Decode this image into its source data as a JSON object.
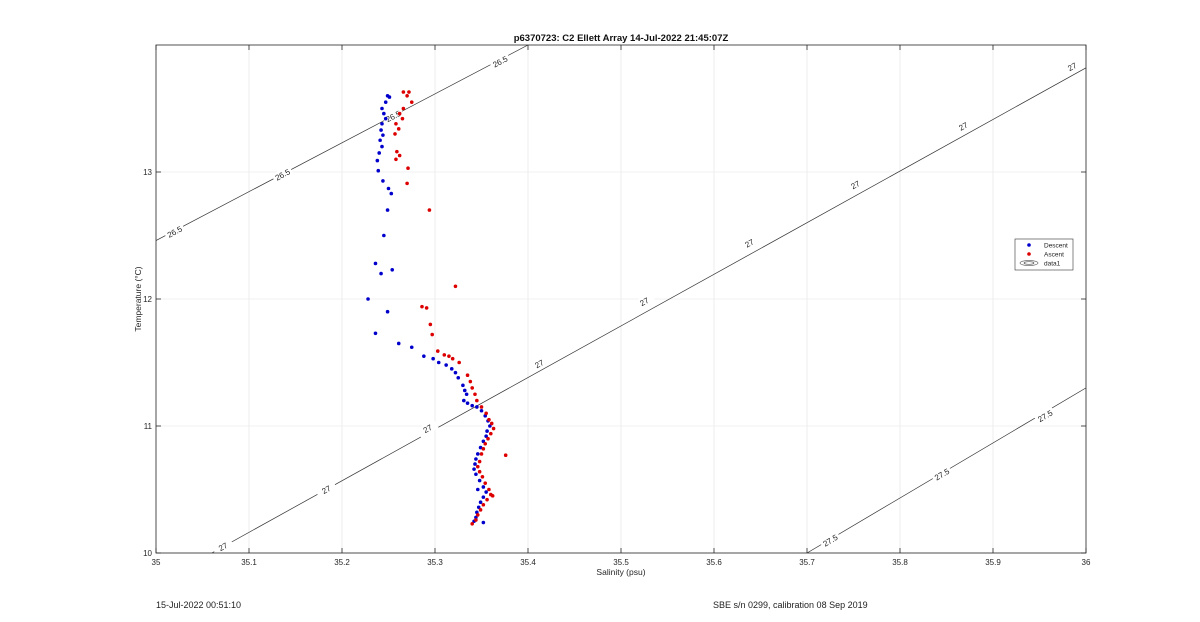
{
  "chart_data": {
    "type": "scatter",
    "title": "p6370723: C2 Ellett Array 14-Jul-2022 21:45:07Z",
    "xlabel": "Salinity (psu)",
    "ylabel": "Temperature (°C)",
    "xlim": [
      35,
      36
    ],
    "ylim": [
      10,
      14.0
    ],
    "xticks": [
      35,
      35.1,
      35.2,
      35.3,
      35.4,
      35.5,
      35.6,
      35.7,
      35.8,
      35.9,
      36
    ],
    "xtick_labels": [
      "35",
      "35.1",
      "35.2",
      "35.3",
      "35.4",
      "35.5",
      "35.6",
      "35.7",
      "35.8",
      "35.9",
      "36"
    ],
    "yticks": [
      10,
      11,
      12,
      13
    ],
    "ytick_labels": [
      "10",
      "11",
      "12",
      "13"
    ],
    "grid": true,
    "legend_position": "right",
    "legend": [
      {
        "label": "Descent",
        "color": "#0000cc",
        "marker": "dot"
      },
      {
        "label": "Ascent",
        "color": "#dd0000",
        "marker": "dot"
      },
      {
        "label": "data1",
        "color": "#555555",
        "marker": "contour"
      }
    ],
    "series": [
      {
        "name": "Descent",
        "color": "#0000cc",
        "points": [
          [
            35.249,
            13.6
          ],
          [
            35.251,
            13.59
          ],
          [
            35.247,
            13.55
          ],
          [
            35.243,
            13.5
          ],
          [
            35.245,
            13.46
          ],
          [
            35.247,
            13.42
          ],
          [
            35.243,
            13.38
          ],
          [
            35.242,
            13.33
          ],
          [
            35.244,
            13.29
          ],
          [
            35.241,
            13.25
          ],
          [
            35.243,
            13.2
          ],
          [
            35.24,
            13.15
          ],
          [
            35.238,
            13.09
          ],
          [
            35.239,
            13.01
          ],
          [
            35.244,
            12.93
          ],
          [
            35.25,
            12.87
          ],
          [
            35.253,
            12.83
          ],
          [
            35.249,
            12.7
          ],
          [
            35.245,
            12.5
          ],
          [
            35.236,
            12.28
          ],
          [
            35.242,
            12.2
          ],
          [
            35.254,
            12.23
          ],
          [
            35.228,
            12.0
          ],
          [
            35.249,
            11.9
          ],
          [
            35.236,
            11.73
          ],
          [
            35.261,
            11.65
          ],
          [
            35.275,
            11.62
          ],
          [
            35.288,
            11.55
          ],
          [
            35.298,
            11.53
          ],
          [
            35.304,
            11.5
          ],
          [
            35.312,
            11.48
          ],
          [
            35.318,
            11.45
          ],
          [
            35.322,
            11.42
          ],
          [
            35.325,
            11.38
          ],
          [
            35.33,
            11.32
          ],
          [
            35.332,
            11.28
          ],
          [
            35.334,
            11.25
          ],
          [
            35.331,
            11.2
          ],
          [
            35.335,
            11.18
          ],
          [
            35.34,
            11.16
          ],
          [
            35.345,
            11.15
          ],
          [
            35.35,
            11.12
          ],
          [
            35.354,
            11.08
          ],
          [
            35.357,
            11.04
          ],
          [
            35.359,
            11.0
          ],
          [
            35.356,
            10.96
          ],
          [
            35.355,
            10.92
          ],
          [
            35.352,
            10.88
          ],
          [
            35.349,
            10.83
          ],
          [
            35.346,
            10.78
          ],
          [
            35.344,
            10.74
          ],
          [
            35.343,
            10.7
          ],
          [
            35.342,
            10.66
          ],
          [
            35.344,
            10.62
          ],
          [
            35.348,
            10.57
          ],
          [
            35.352,
            10.52
          ],
          [
            35.355,
            10.48
          ],
          [
            35.352,
            10.44
          ],
          [
            35.349,
            10.4
          ],
          [
            35.347,
            10.36
          ],
          [
            35.345,
            10.32
          ],
          [
            35.344,
            10.28
          ],
          [
            35.342,
            10.25
          ],
          [
            35.352,
            10.24
          ],
          [
            35.346,
            10.5
          ]
        ]
      },
      {
        "name": "Ascent",
        "color": "#dd0000",
        "points": [
          [
            35.266,
            13.63
          ],
          [
            35.272,
            13.63
          ],
          [
            35.27,
            13.6
          ],
          [
            35.275,
            13.55
          ],
          [
            35.266,
            13.5
          ],
          [
            35.262,
            13.46
          ],
          [
            35.265,
            13.42
          ],
          [
            35.258,
            13.38
          ],
          [
            35.261,
            13.34
          ],
          [
            35.257,
            13.3
          ],
          [
            35.259,
            13.16
          ],
          [
            35.262,
            13.13
          ],
          [
            35.258,
            13.1
          ],
          [
            35.271,
            13.03
          ],
          [
            35.27,
            12.91
          ],
          [
            35.294,
            12.7
          ],
          [
            35.322,
            12.1
          ],
          [
            35.286,
            11.94
          ],
          [
            35.291,
            11.93
          ],
          [
            35.295,
            11.8
          ],
          [
            35.297,
            11.72
          ],
          [
            35.303,
            11.59
          ],
          [
            35.31,
            11.56
          ],
          [
            35.315,
            11.55
          ],
          [
            35.319,
            11.53
          ],
          [
            35.326,
            11.5
          ],
          [
            35.335,
            11.4
          ],
          [
            35.338,
            11.35
          ],
          [
            35.34,
            11.3
          ],
          [
            35.343,
            11.25
          ],
          [
            35.345,
            11.2
          ],
          [
            35.35,
            11.15
          ],
          [
            35.355,
            11.1
          ],
          [
            35.358,
            11.05
          ],
          [
            35.361,
            11.02
          ],
          [
            35.363,
            10.98
          ],
          [
            35.36,
            10.94
          ],
          [
            35.357,
            10.9
          ],
          [
            35.354,
            10.86
          ],
          [
            35.352,
            10.82
          ],
          [
            35.35,
            10.78
          ],
          [
            35.348,
            10.72
          ],
          [
            35.346,
            10.68
          ],
          [
            35.348,
            10.64
          ],
          [
            35.351,
            10.6
          ],
          [
            35.354,
            10.55
          ],
          [
            35.358,
            10.5
          ],
          [
            35.362,
            10.45
          ],
          [
            35.356,
            10.42
          ],
          [
            35.352,
            10.38
          ],
          [
            35.349,
            10.34
          ],
          [
            35.346,
            10.3
          ],
          [
            35.344,
            10.26
          ],
          [
            35.376,
            10.77
          ],
          [
            35.34,
            10.23
          ],
          [
            35.36,
            10.46
          ]
        ]
      }
    ],
    "contours": [
      {
        "level_label": "26.5",
        "line": [
          [
            35.0,
            12.46
          ],
          [
            35.4,
            14.0
          ]
        ],
        "label_points": [
          [
            35.02,
            12.53
          ],
          [
            35.136,
            12.98
          ],
          [
            35.37,
            13.87
          ],
          [
            35.255,
            13.44
          ]
        ]
      },
      {
        "level_label": "27",
        "line": [
          [
            35.06,
            10.0
          ],
          [
            36.0,
            13.82
          ]
        ],
        "label_points": [
          [
            35.072,
            10.05
          ],
          [
            35.183,
            10.5
          ],
          [
            35.292,
            10.98
          ],
          [
            35.412,
            11.49
          ],
          [
            35.525,
            11.98
          ],
          [
            35.638,
            12.44
          ],
          [
            35.752,
            12.9
          ],
          [
            35.868,
            13.36
          ],
          [
            35.985,
            13.83
          ]
        ]
      },
      {
        "level_label": "27.5",
        "line": [
          [
            35.7,
            10.0
          ],
          [
            36.0,
            11.3
          ]
        ],
        "label_points": [
          [
            35.725,
            10.1
          ],
          [
            35.845,
            10.62
          ],
          [
            35.956,
            11.08
          ]
        ]
      }
    ]
  },
  "footer": {
    "timestamp": "15-Jul-2022 00:51:10",
    "calibration": "SBE s/n 0299, calibration 08 Sep 2019"
  }
}
